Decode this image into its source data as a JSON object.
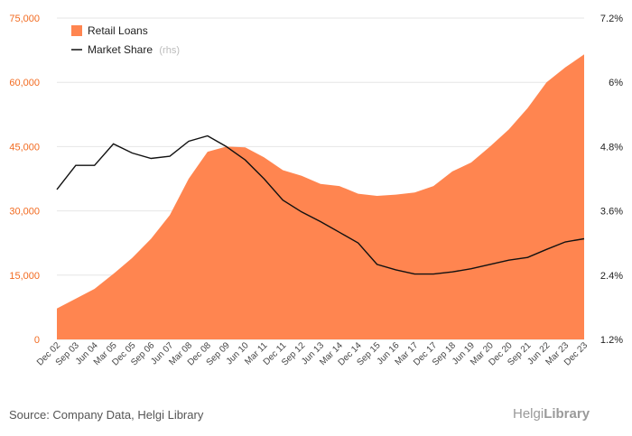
{
  "chart_data": {
    "type": "area",
    "title": "",
    "categories": [
      "Dec 02",
      "Sep 03",
      "Jun 04",
      "Mar 05",
      "Dec 05",
      "Sep 06",
      "Jun 07",
      "Mar 08",
      "Dec 08",
      "Sep 09",
      "Jun 10",
      "Mar 11",
      "Dec 11",
      "Sep 12",
      "Jun 13",
      "Mar 14",
      "Dec 14",
      "Sep 15",
      "Jun 16",
      "Mar 17",
      "Dec 17",
      "Sep 18",
      "Jun 19",
      "Mar 20",
      "Dec 20",
      "Sep 21",
      "Jun 22",
      "Mar 23",
      "Dec 23"
    ],
    "series": [
      {
        "name": "Retail Loans",
        "axis": "left",
        "color": "#ff8550",
        "values": [
          7200,
          9500,
          11800,
          15300,
          19000,
          23500,
          29000,
          37500,
          43800,
          45000,
          44800,
          42500,
          39500,
          38200,
          36300,
          35800,
          34000,
          33500,
          33800,
          34300,
          35800,
          39200,
          41300,
          45000,
          49000,
          54000,
          60000,
          63500,
          66500
        ]
      },
      {
        "name": "Market Share",
        "axis": "right",
        "hint": "(rhs)",
        "color": "#111111",
        "values": [
          4.0,
          4.45,
          4.45,
          4.85,
          4.68,
          4.58,
          4.62,
          4.9,
          5.0,
          4.8,
          4.55,
          4.2,
          3.8,
          3.58,
          3.4,
          3.2,
          3.0,
          2.6,
          2.5,
          2.42,
          2.42,
          2.46,
          2.52,
          2.6,
          2.68,
          2.73,
          2.88,
          3.02,
          3.08
        ]
      }
    ],
    "y_left": {
      "min": 0,
      "max": 75000,
      "ticks": [
        "0",
        "15,000",
        "30,000",
        "45,000",
        "60,000",
        "75,000"
      ],
      "tick_values": [
        0,
        15000,
        30000,
        45000,
        60000,
        75000
      ]
    },
    "y_right": {
      "min": 1.2,
      "max": 7.2,
      "ticks": [
        "1.2%",
        "2.4%",
        "3.6%",
        "4.8%",
        "6%",
        "7.2%"
      ],
      "tick_values": [
        1.2,
        2.4,
        3.6,
        4.8,
        6.0,
        7.2
      ]
    },
    "grid": true,
    "legend_position": "top-left"
  },
  "footer": {
    "source": "Source: Company Data, Helgi Library",
    "brand_prefix": "Helgi",
    "brand_suffix": "Library"
  }
}
